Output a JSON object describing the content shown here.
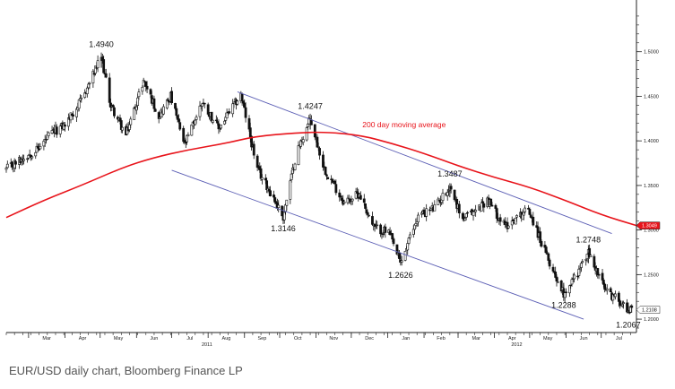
{
  "caption": "EUR/USD daily chart, Bloomberg Finance LP",
  "chart_data": {
    "type": "candlestick",
    "title": "",
    "xlabel": "",
    "ylabel": "",
    "ylim": [
      1.185,
      1.555
    ],
    "yticks": [
      1.2,
      1.25,
      1.3,
      1.35,
      1.4,
      1.45,
      1.5
    ],
    "ytick_labels": [
      "1.2000",
      "1.2500",
      "1.3000",
      "1.3500",
      "1.4000",
      "1.4500",
      "1.5000"
    ],
    "x_axis_start": "2011-02-10",
    "x_axis_end": "2012-07-31",
    "month_ticks": [
      {
        "label": "Mar",
        "date": "2011-03-01"
      },
      {
        "label": "Apr",
        "date": "2011-04-01"
      },
      {
        "label": "May",
        "date": "2011-05-01"
      },
      {
        "label": "Jun",
        "date": "2011-06-01"
      },
      {
        "label": "Jul",
        "date": "2011-07-01"
      },
      {
        "label": "Aug",
        "date": "2011-08-01"
      },
      {
        "label": "Sep",
        "date": "2011-09-01"
      },
      {
        "label": "Oct",
        "date": "2011-10-01"
      },
      {
        "label": "Nov",
        "date": "2011-11-01"
      },
      {
        "label": "Dec",
        "date": "2011-12-01"
      },
      {
        "label": "Jan",
        "date": "2012-01-01"
      },
      {
        "label": "Feb",
        "date": "2012-02-01"
      },
      {
        "label": "Mar",
        "date": "2012-03-01"
      },
      {
        "label": "Apr",
        "date": "2012-04-01"
      },
      {
        "label": "May",
        "date": "2012-05-01"
      },
      {
        "label": "Jun",
        "date": "2012-06-01"
      },
      {
        "label": "Jul",
        "date": "2012-07-01"
      }
    ],
    "year_labels": [
      {
        "label": "2011",
        "date": "2011-07-31"
      },
      {
        "label": "2012",
        "date": "2012-04-20"
      }
    ],
    "price_path": [
      [
        "2011-02-10",
        1.368
      ],
      [
        "2011-02-28",
        1.384
      ],
      [
        "2011-03-10",
        1.392
      ],
      [
        "2011-03-20",
        1.408
      ],
      [
        "2011-04-01",
        1.418
      ],
      [
        "2011-04-15",
        1.445
      ],
      [
        "2011-05-02",
        1.494
      ],
      [
        "2011-05-10",
        1.44
      ],
      [
        "2011-05-23",
        1.406
      ],
      [
        "2011-06-07",
        1.468
      ],
      [
        "2011-06-20",
        1.428
      ],
      [
        "2011-06-30",
        1.45
      ],
      [
        "2011-07-12",
        1.395
      ],
      [
        "2011-07-27",
        1.444
      ],
      [
        "2011-08-10",
        1.414
      ],
      [
        "2011-08-29",
        1.452
      ],
      [
        "2011-09-12",
        1.368
      ],
      [
        "2011-09-25",
        1.338
      ],
      [
        "2011-10-04",
        1.3146
      ],
      [
        "2011-10-15",
        1.385
      ],
      [
        "2011-10-27",
        1.4247
      ],
      [
        "2011-11-08",
        1.369
      ],
      [
        "2011-11-25",
        1.331
      ],
      [
        "2011-12-08",
        1.341
      ],
      [
        "2011-12-20",
        1.303
      ],
      [
        "2012-01-02",
        1.297
      ],
      [
        "2012-01-12",
        1.2626
      ],
      [
        "2012-01-27",
        1.316
      ],
      [
        "2012-02-10",
        1.325
      ],
      [
        "2012-02-23",
        1.3487
      ],
      [
        "2012-03-05",
        1.312
      ],
      [
        "2012-03-16",
        1.322
      ],
      [
        "2012-03-26",
        1.334
      ],
      [
        "2012-04-10",
        1.304
      ],
      [
        "2012-04-30",
        1.324
      ],
      [
        "2012-05-15",
        1.272
      ],
      [
        "2012-05-30",
        1.2288
      ],
      [
        "2012-06-12",
        1.255
      ],
      [
        "2012-06-20",
        1.2748
      ],
      [
        "2012-07-05",
        1.231
      ],
      [
        "2012-07-20",
        1.218
      ],
      [
        "2012-07-24",
        1.2067
      ],
      [
        "2012-07-27",
        1.218
      ]
    ],
    "moving_average": {
      "name": "200 day moving average",
      "color": "#e8141b",
      "last_value_label": "1.3049",
      "points": [
        [
          "2011-02-10",
          1.314
        ],
        [
          "2011-03-15",
          1.334
        ],
        [
          "2011-04-15",
          1.35
        ],
        [
          "2011-05-20",
          1.37
        ],
        [
          "2011-06-15",
          1.381
        ],
        [
          "2011-07-15",
          1.39
        ],
        [
          "2011-08-15",
          1.397
        ],
        [
          "2011-09-10",
          1.405
        ],
        [
          "2011-10-15",
          1.409
        ],
        [
          "2011-11-10",
          1.41
        ],
        [
          "2011-12-10",
          1.406
        ],
        [
          "2012-01-05",
          1.397
        ],
        [
          "2012-02-01",
          1.386
        ],
        [
          "2012-03-01",
          1.372
        ],
        [
          "2012-04-01",
          1.359
        ],
        [
          "2012-05-01",
          1.348
        ],
        [
          "2012-06-01",
          1.333
        ],
        [
          "2012-07-01",
          1.317
        ],
        [
          "2012-07-31",
          1.305
        ]
      ]
    },
    "last_price_label": "1.2108",
    "trend_channel": {
      "color": "#5c5fb5",
      "upper": [
        [
          "2011-08-26",
          1.455
        ],
        [
          "2012-07-10",
          1.296
        ]
      ],
      "lower": [
        [
          "2011-07-01",
          1.367
        ],
        [
          "2012-06-16",
          1.2
        ]
      ]
    },
    "annotations": [
      {
        "text": "1.4940",
        "date": "2011-05-02",
        "value": 1.494,
        "pos": "above"
      },
      {
        "text": "1.4247",
        "date": "2011-10-27",
        "value": 1.4247,
        "pos": "above"
      },
      {
        "text": "1.3146",
        "date": "2011-10-04",
        "value": 1.3146,
        "pos": "below"
      },
      {
        "text": "1.3487",
        "date": "2012-02-23",
        "value": 1.3487,
        "pos": "above"
      },
      {
        "text": "1.2626",
        "date": "2012-01-12",
        "value": 1.2626,
        "pos": "below"
      },
      {
        "text": "1.2748",
        "date": "2012-06-20",
        "value": 1.2748,
        "pos": "above"
      },
      {
        "text": "1.2288",
        "date": "2012-05-30",
        "value": 1.2288,
        "pos": "below"
      },
      {
        "text": "1.2067",
        "date": "2012-07-24",
        "value": 1.2067,
        "pos": "below"
      },
      {
        "text": "200 day moving average",
        "date": "2012-01-15",
        "value": 1.415,
        "pos": "label",
        "color": "#e8141b"
      }
    ],
    "grid": false,
    "legend": "none"
  }
}
